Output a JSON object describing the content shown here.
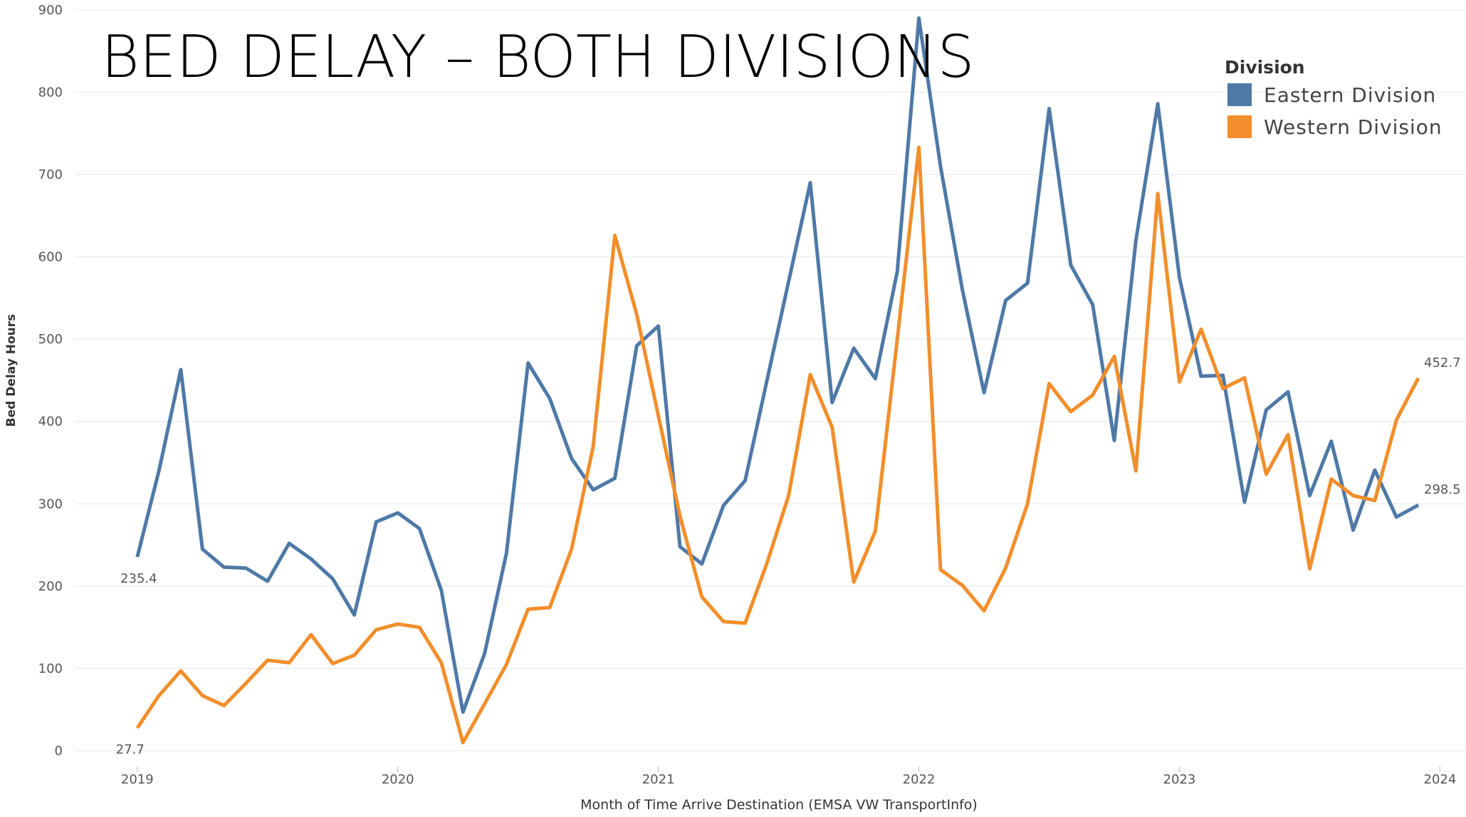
{
  "chart_data": {
    "type": "line",
    "title": "BED DELAY – BOTH DIVISIONS",
    "y_label": "Bed Delay Hours",
    "x_label": "Month of Time Arrive Destination (EMSA VW TransportInfo)",
    "legend_title": "Division",
    "legend_position": "upper right",
    "grid": true,
    "x": [
      2019,
      2019.083,
      2019.167,
      2019.25,
      2019.333,
      2019.417,
      2019.5,
      2019.583,
      2019.667,
      2019.75,
      2019.833,
      2019.917,
      2020,
      2020.083,
      2020.167,
      2020.25,
      2020.333,
      2020.417,
      2020.5,
      2020.583,
      2020.667,
      2020.75,
      2020.833,
      2020.917,
      2021,
      2021.083,
      2021.167,
      2021.25,
      2021.333,
      2021.417,
      2021.5,
      2021.583,
      2021.667,
      2021.75,
      2021.833,
      2021.917,
      2022,
      2022.083,
      2022.167,
      2022.25,
      2022.333,
      2022.417,
      2022.5,
      2022.583,
      2022.667,
      2022.75,
      2022.833,
      2022.917,
      2023,
      2023.083,
      2023.167,
      2023.25,
      2023.333,
      2023.417,
      2023.5,
      2023.583,
      2023.667,
      2023.75,
      2023.833,
      2023.917
    ],
    "xlim": [
      2018.76,
      2024.1
    ],
    "xticks": [
      2019,
      2020,
      2021,
      2022,
      2023,
      2024
    ],
    "ylim": [
      -19,
      912
    ],
    "yticks": [
      0,
      100,
      200,
      300,
      400,
      500,
      600,
      700,
      800,
      900
    ],
    "series": [
      {
        "name": "Eastern Division",
        "color": "#4e79a7",
        "values": [
          235.4,
          340,
          463,
          245,
          223,
          222,
          206,
          252,
          233,
          209,
          165,
          278,
          289,
          270,
          195,
          47,
          118,
          240,
          471,
          428,
          355,
          317,
          331,
          492,
          516,
          248,
          227,
          298,
          328,
          450,
          570,
          690,
          423,
          489,
          452,
          582,
          890,
          710,
          560,
          435,
          547,
          568,
          780,
          590,
          542,
          377,
          620,
          786,
          575,
          455,
          456,
          302,
          414,
          436,
          310,
          376,
          268,
          341,
          284,
          298.5
        ]
      },
      {
        "name": "Western Division",
        "color": "#f28e2b",
        "values": [
          27.7,
          67,
          97,
          67,
          55,
          82,
          110,
          107,
          141,
          106,
          116,
          147,
          154,
          150,
          107,
          10,
          57,
          105,
          172,
          174,
          245,
          370,
          626,
          530,
          407,
          285,
          187,
          157,
          155,
          228,
          310,
          457,
          393,
          205,
          267,
          500,
          733,
          220,
          201,
          170,
          222,
          300,
          446,
          412,
          432,
          479,
          340,
          677,
          448,
          512,
          440,
          453,
          336,
          384,
          221,
          330,
          310,
          304,
          402,
          452.7
        ]
      }
    ]
  }
}
